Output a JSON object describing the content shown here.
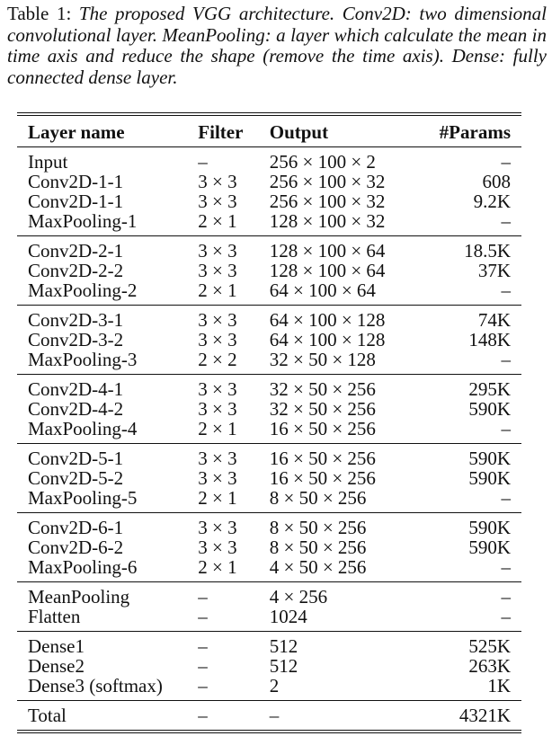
{
  "caption": {
    "label": "Table 1:",
    "text": "The proposed VGG architecture. Conv2D: two dimensional convolutional layer. MeanPooling: a layer which calculate the mean in time axis and reduce the shape (remove the time axis). Dense: fully connected dense layer."
  },
  "headers": [
    "Layer name",
    "Filter",
    "Output",
    "#Params"
  ],
  "groups": [
    [
      [
        "Input",
        "–",
        "256 × 100 × 2",
        "–"
      ],
      [
        "Conv2D-1-1",
        "3 × 3",
        "256 × 100 × 32",
        "608"
      ],
      [
        "Conv2D-1-1",
        "3 × 3",
        "256 × 100 × 32",
        "9.2K"
      ],
      [
        "MaxPooling-1",
        "2 × 1",
        "128 × 100 × 32",
        "–"
      ]
    ],
    [
      [
        "Conv2D-2-1",
        "3 × 3",
        "128 × 100 × 64",
        "18.5K"
      ],
      [
        "Conv2D-2-2",
        "3 × 3",
        "128 × 100 × 64",
        "37K"
      ],
      [
        "MaxPooling-2",
        "2 × 1",
        "64 × 100 × 64",
        "–"
      ]
    ],
    [
      [
        "Conv2D-3-1",
        "3 × 3",
        "64 × 100 × 128",
        "74K"
      ],
      [
        "Conv2D-3-2",
        "3 × 3",
        "64 × 100 × 128",
        "148K"
      ],
      [
        "MaxPooling-3",
        "2 × 2",
        "32 × 50 × 128",
        "–"
      ]
    ],
    [
      [
        "Conv2D-4-1",
        "3 × 3",
        "32 × 50 × 256",
        "295K"
      ],
      [
        "Conv2D-4-2",
        "3 × 3",
        "32 × 50 × 256",
        "590K"
      ],
      [
        "MaxPooling-4",
        "2 × 1",
        "16 × 50 × 256",
        "–"
      ]
    ],
    [
      [
        "Conv2D-5-1",
        "3 × 3",
        "16 × 50 × 256",
        "590K"
      ],
      [
        "Conv2D-5-2",
        "3 × 3",
        "16 × 50 × 256",
        "590K"
      ],
      [
        "MaxPooling-5",
        "2 × 1",
        "8 × 50 × 256",
        "–"
      ]
    ],
    [
      [
        "Conv2D-6-1",
        "3 × 3",
        "8 × 50 × 256",
        "590K"
      ],
      [
        "Conv2D-6-2",
        "3 × 3",
        "8 × 50 × 256",
        "590K"
      ],
      [
        "MaxPooling-6",
        "2 × 1",
        "4 × 50 × 256",
        "–"
      ]
    ],
    [
      [
        "MeanPooling",
        "–",
        "4 × 256",
        "–"
      ],
      [
        "Flatten",
        "–",
        "1024",
        "–"
      ]
    ],
    [
      [
        "Dense1",
        "–",
        "512",
        "525K"
      ],
      [
        "Dense2",
        "–",
        "512",
        "263K"
      ],
      [
        "Dense3 (softmax)",
        "–",
        "2",
        "1K"
      ]
    ],
    [
      [
        "Total",
        "–",
        "–",
        "4321K"
      ]
    ]
  ]
}
